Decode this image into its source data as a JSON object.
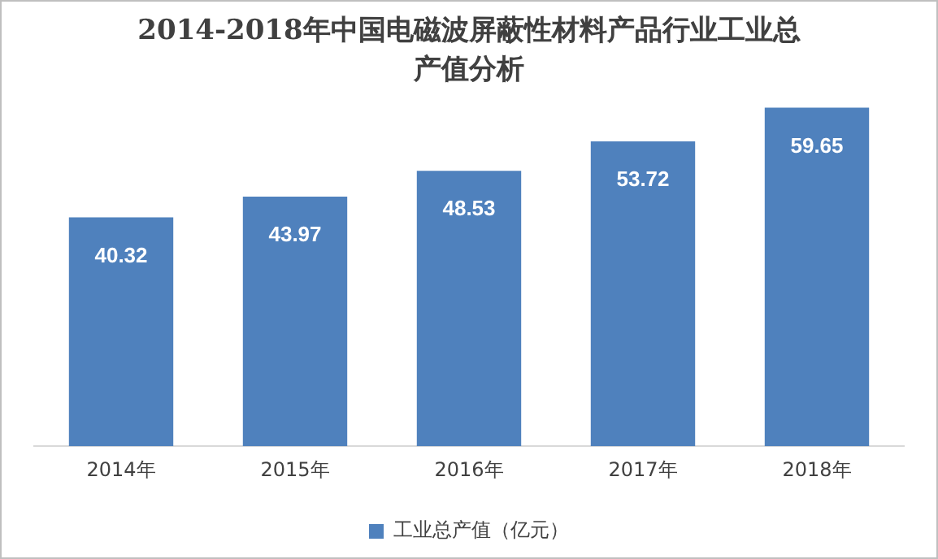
{
  "chart_data": {
    "type": "bar",
    "title": "2014-2018年中国电磁波屏蔽性材料产品行业工业总产值分析",
    "categories": [
      "2014年",
      "2015年",
      "2016年",
      "2017年",
      "2018年"
    ],
    "series": [
      {
        "name": "工业总产值（亿元）",
        "color": "#4f81bd",
        "values": [
          40.32,
          43.97,
          48.53,
          53.72,
          59.65
        ]
      }
    ],
    "data_labels": true,
    "legend": "bottom",
    "grid": false
  }
}
